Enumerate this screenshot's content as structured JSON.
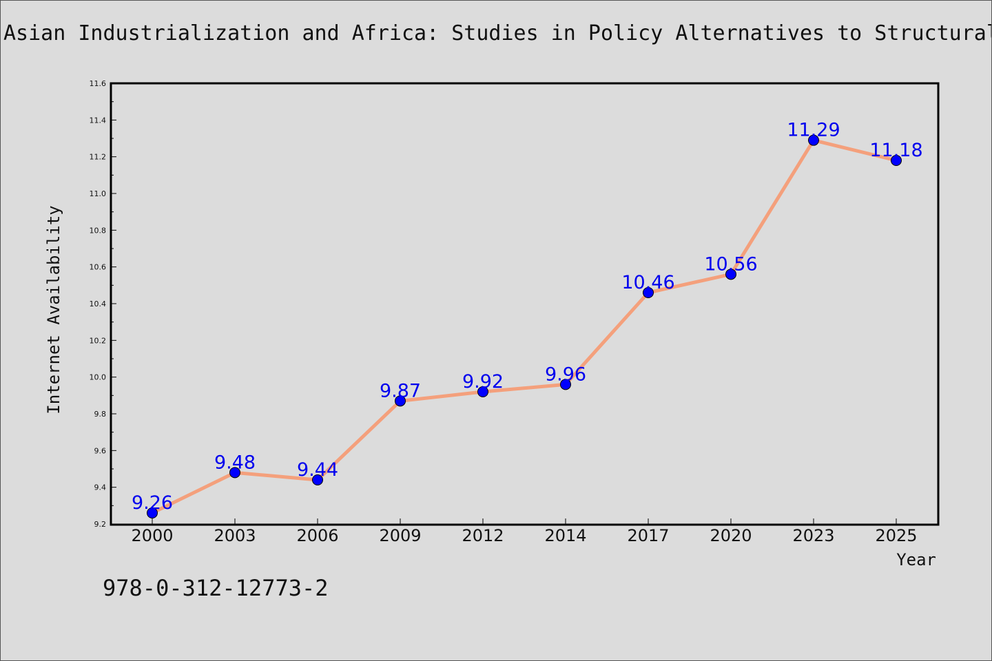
{
  "title": "Asian Industrialization and Africa: Studies in Policy Alternatives to Structural",
  "isbn": "978-0-312-12773-2",
  "colors": {
    "background": "#dcdcdc",
    "line": "#f4a07c",
    "marker": "#0000ff",
    "data_label": "#0000ee"
  },
  "chart_data": {
    "type": "line",
    "title": "Asian Industrialization and Africa: Studies in Policy Alternatives to Structural",
    "xlabel": "Year",
    "ylabel": "Internet Availability",
    "categories": [
      "2000",
      "2003",
      "2006",
      "2009",
      "2012",
      "2014",
      "2017",
      "2020",
      "2023",
      "2025"
    ],
    "values": [
      9.26,
      9.48,
      9.44,
      9.87,
      9.92,
      9.96,
      10.46,
      10.56,
      11.29,
      11.18
    ],
    "data_labels": [
      "9.26",
      "9.48",
      "9.44",
      "9.87",
      "9.92",
      "9.96",
      "10.46",
      "10.56",
      "11.29",
      "11.18"
    ],
    "ylim": [
      9.2,
      11.6
    ],
    "yticks": [
      "9.2",
      "9.4",
      "9.6",
      "9.8",
      "10.0",
      "10.2",
      "10.4",
      "10.6",
      "10.8",
      "11.0",
      "11.2",
      "11.4",
      "11.6"
    ],
    "grid": false,
    "legend": "none"
  }
}
